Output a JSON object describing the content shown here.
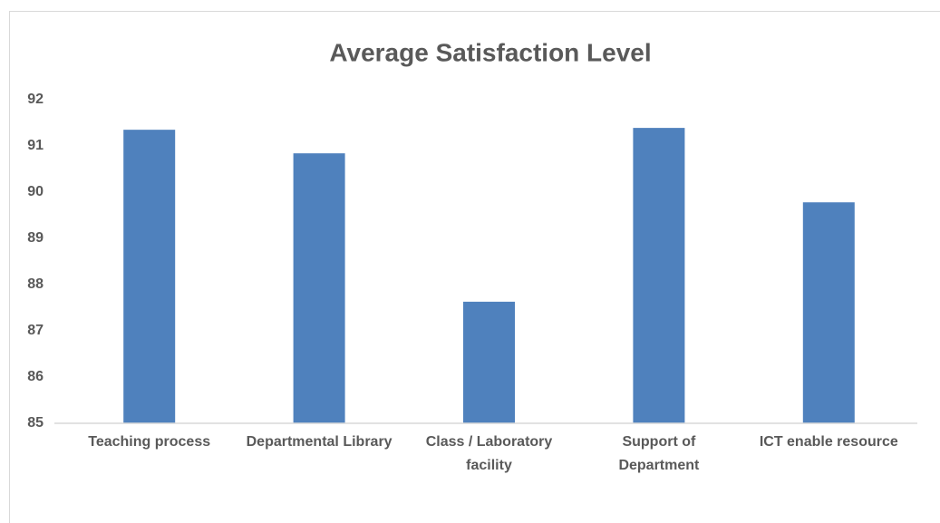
{
  "chart_data": {
    "type": "bar",
    "title": "Average Satisfaction Level",
    "categories": [
      "Teaching process",
      "Departmental Library",
      "Class / Laboratory facility",
      "Support of Department",
      "ICT enable resource"
    ],
    "values": [
      91.35,
      90.84,
      87.63,
      91.39,
      89.78
    ],
    "color": "#4f81bd",
    "ylim": [
      85,
      92
    ],
    "yticks": [
      85,
      86,
      87,
      88,
      89,
      90,
      91,
      92
    ],
    "grid": false
  }
}
